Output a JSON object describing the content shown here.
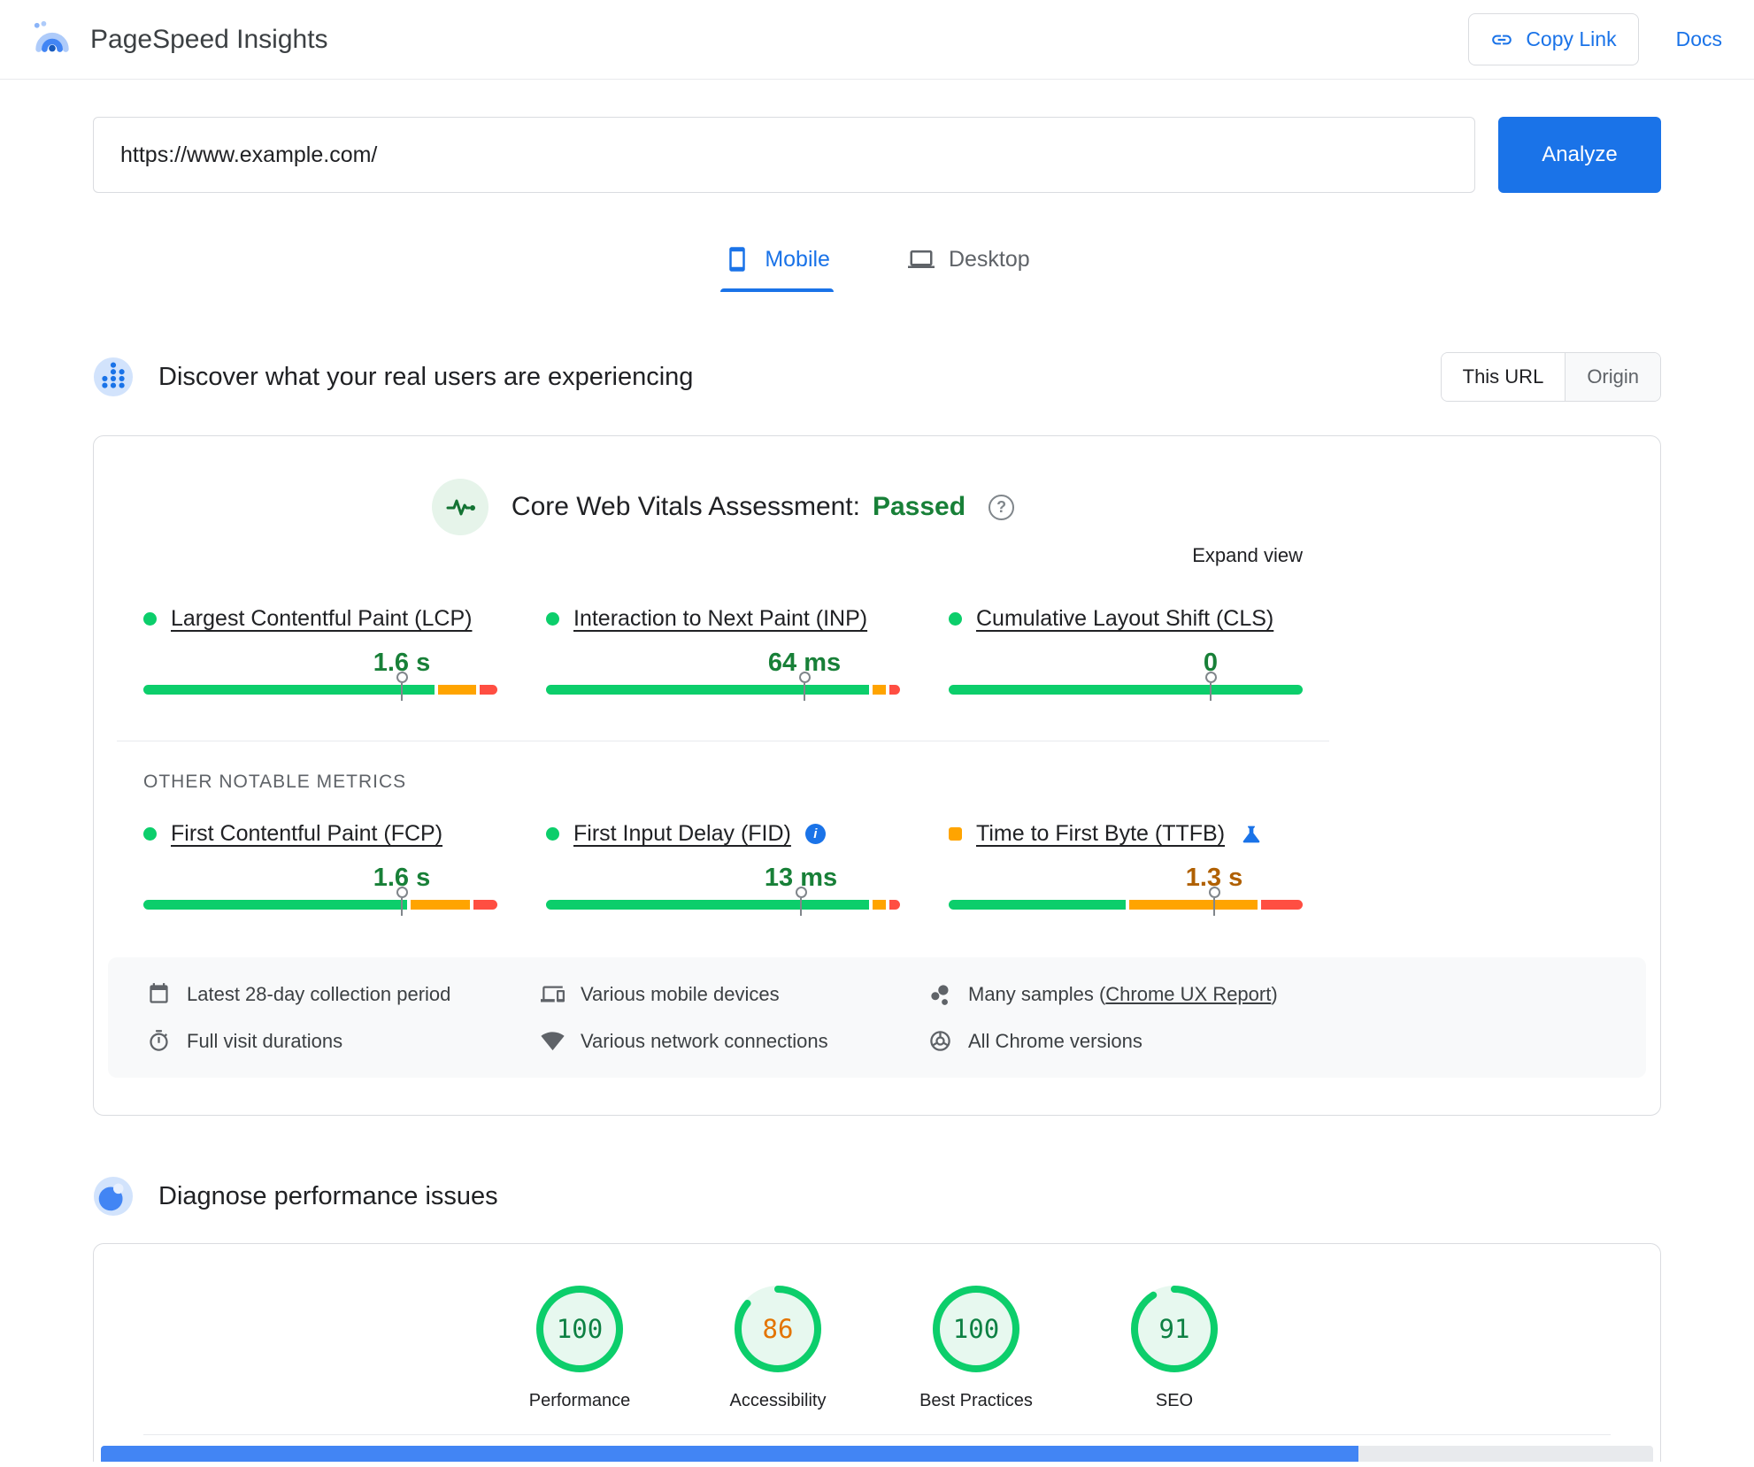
{
  "colors": {
    "primary": "#1a73e8",
    "good": "#0cce6b",
    "average": "#ffa400",
    "poor": "#ff4e42",
    "passed_text": "#188038",
    "value_good": "#188038",
    "value_average": "#b06000",
    "score_good_bg": "#e7f8ef",
    "score_average_bg": "#fef7e0",
    "score_good_text": "#0d8043",
    "score_average_text": "#e37400",
    "strip_active": "#4285f4",
    "strip_rest": "#e8eaed"
  },
  "icons": {
    "help_glyph": "?",
    "info_glyph": "i"
  },
  "header": {
    "app_title": "PageSpeed Insights",
    "copy_link_label": "Copy Link",
    "docs_label": "Docs"
  },
  "url_form": {
    "url_value": "https://www.example.com/",
    "analyze_label": "Analyze"
  },
  "tabs": {
    "mobile_label": "Mobile",
    "desktop_label": "Desktop"
  },
  "field_data": {
    "section_title": "Discover what your real users are experiencing",
    "toggle": {
      "this_url_label": "This URL",
      "origin_label": "Origin"
    },
    "assessment_label": "Core Web Vitals Assessment:",
    "assessment_result": "Passed",
    "expand_view_label": "Expand view",
    "core_metrics": [
      {
        "name": "Largest Contentful Paint (LCP)",
        "value": "1.6 s",
        "value_tone": "good",
        "bullet": "circle-good",
        "marker_pct": 73,
        "distribution": {
          "good": 84,
          "average": 11,
          "poor": 5
        }
      },
      {
        "name": "Interaction to Next Paint (INP)",
        "value": "64 ms",
        "value_tone": "good",
        "bullet": "circle-good",
        "marker_pct": 73,
        "distribution": {
          "good": 93,
          "average": 4,
          "poor": 3
        }
      },
      {
        "name": "Cumulative Layout Shift (CLS)",
        "value": "0",
        "value_tone": "good",
        "bullet": "circle-good",
        "marker_pct": 74,
        "distribution": {
          "good": 100,
          "average": 0,
          "poor": 0
        }
      }
    ],
    "other_metrics_heading": "OTHER NOTABLE METRICS",
    "other_metrics": [
      {
        "name": "First Contentful Paint (FCP)",
        "value": "1.6 s",
        "value_tone": "good",
        "bullet": "circle-good",
        "marker_pct": 73,
        "distribution": {
          "good": 76,
          "average": 17,
          "poor": 7
        }
      },
      {
        "name": "First Input Delay (FID)",
        "value": "13 ms",
        "value_tone": "good",
        "bullet": "circle-good",
        "badge": "info-icon",
        "marker_pct": 72,
        "distribution": {
          "good": 93,
          "average": 4,
          "poor": 3
        }
      },
      {
        "name": "Time to First Byte (TTFB)",
        "value": "1.3 s",
        "value_tone": "average",
        "bullet": "square-average",
        "badge": "flask-icon",
        "marker_pct": 75,
        "distribution": {
          "good": 51,
          "average": 37,
          "poor": 12
        }
      }
    ],
    "footnotes": {
      "collection_period": "Latest 28-day collection period",
      "visit_durations": "Full visit durations",
      "devices": "Various mobile devices",
      "network": "Various network connections",
      "samples_prefix": "Many samples (",
      "samples_link": "Chrome UX Report",
      "samples_suffix": ")",
      "chrome_versions": "All Chrome versions"
    }
  },
  "diagnose": {
    "section_title": "Diagnose performance issues"
  },
  "scores": [
    {
      "label": "Performance",
      "value": 100,
      "tone": "good"
    },
    {
      "label": "Accessibility",
      "value": 86,
      "tone": "average"
    },
    {
      "label": "Best Practices",
      "value": 100,
      "tone": "good"
    },
    {
      "label": "SEO",
      "value": 91,
      "tone": "good"
    }
  ],
  "bottom_strip": {
    "filled_pct": 81
  }
}
